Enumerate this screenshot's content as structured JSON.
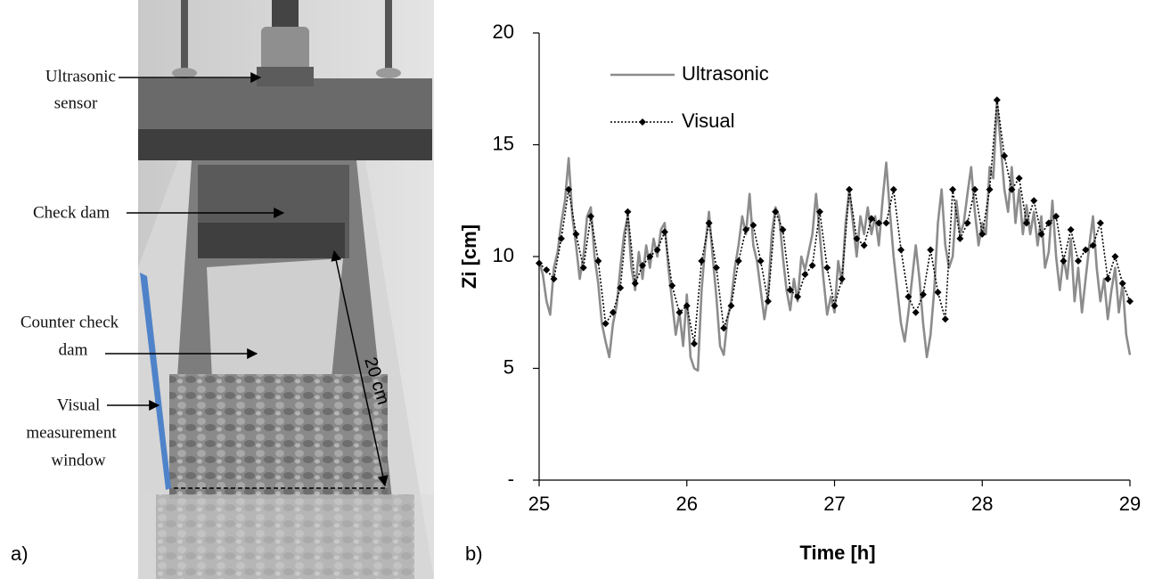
{
  "photo": {
    "labels": {
      "sensor": [
        "Ultrasonic",
        "sensor"
      ],
      "check_dam": [
        "Check dam"
      ],
      "counter_check_dam": [
        "Counter check",
        "dam"
      ],
      "window": [
        "Visual",
        "measurement",
        "window"
      ],
      "length": "20 cm"
    },
    "panel": "a)"
  },
  "chart_data": {
    "type": "line",
    "panel": "b)",
    "xlabel": "Time [h]",
    "ylabel": "Zi [cm]",
    "xlim": [
      25,
      29
    ],
    "ylim": [
      0,
      20
    ],
    "xticks": [
      25,
      26,
      27,
      28,
      29
    ],
    "yticks": [
      {
        "value": 0,
        "label": "-"
      },
      5,
      10,
      15,
      20
    ],
    "grid": false,
    "legend": "top-left",
    "series": [
      {
        "name": "Ultrasonic",
        "color": "#8c8c8c",
        "style": "solid",
        "x": [
          25,
          25.025,
          25.05,
          25.075,
          25.1,
          25.125,
          25.15,
          25.175,
          25.2,
          25.225,
          25.25,
          25.275,
          25.3,
          25.325,
          25.35,
          25.375,
          25.4,
          25.425,
          25.45,
          25.475,
          25.5,
          25.525,
          25.55,
          25.575,
          25.6,
          25.625,
          25.65,
          25.675,
          25.7,
          25.725,
          25.75,
          25.775,
          25.8,
          25.825,
          25.85,
          25.875,
          25.9,
          25.925,
          25.95,
          25.975,
          26,
          26.025,
          26.05,
          26.075,
          26.1,
          26.125,
          26.15,
          26.175,
          26.2,
          26.225,
          26.25,
          26.275,
          26.3,
          26.325,
          26.35,
          26.375,
          26.4,
          26.425,
          26.45,
          26.475,
          26.5,
          26.525,
          26.55,
          26.575,
          26.6,
          26.625,
          26.65,
          26.675,
          26.7,
          26.725,
          26.75,
          26.775,
          26.8,
          26.825,
          26.85,
          26.875,
          26.9,
          26.925,
          26.95,
          26.975,
          27,
          27.025,
          27.05,
          27.075,
          27.1,
          27.125,
          27.15,
          27.175,
          27.2,
          27.225,
          27.25,
          27.275,
          27.3,
          27.325,
          27.35,
          27.375,
          27.4,
          27.425,
          27.45,
          27.475,
          27.5,
          27.525,
          27.55,
          27.575,
          27.6,
          27.625,
          27.65,
          27.675,
          27.7,
          27.725,
          27.75,
          27.775,
          27.8,
          27.825,
          27.85,
          27.875,
          27.9,
          27.925,
          27.95,
          27.975,
          28,
          28.025,
          28.05,
          28.075,
          28.1,
          28.125,
          28.15,
          28.175,
          28.2,
          28.225,
          28.25,
          28.275,
          28.3,
          28.325,
          28.35,
          28.375,
          28.4,
          28.425,
          28.45,
          28.475,
          28.5,
          28.525,
          28.55,
          28.575,
          28.6,
          28.625,
          28.65,
          28.675,
          28.7,
          28.725,
          28.75,
          28.775,
          28.8,
          28.825,
          28.85,
          28.875,
          28.9,
          28.925,
          28.95,
          28.975,
          29
        ],
        "values": [
          9.8,
          9.2,
          8.0,
          7.4,
          9.5,
          10.2,
          11.5,
          12.5,
          14.4,
          11.8,
          10.5,
          9.0,
          10.0,
          11.8,
          12.2,
          10.0,
          8.8,
          7.0,
          6.2,
          5.5,
          7.0,
          7.8,
          9.5,
          11.0,
          11.8,
          9.5,
          8.5,
          10.2,
          9.0,
          10.5,
          9.5,
          10.8,
          10.0,
          11.2,
          11.5,
          9.5,
          8.0,
          6.5,
          7.5,
          6.0,
          8.3,
          5.5,
          5.0,
          4.9,
          8.5,
          10.5,
          12.0,
          10.0,
          8.2,
          6.0,
          5.6,
          7.2,
          8.0,
          9.5,
          10.5,
          11.8,
          11.0,
          12.8,
          10.5,
          9.8,
          8.5,
          7.2,
          8.3,
          11.0,
          12.2,
          11.8,
          10.0,
          8.5,
          7.6,
          9.0,
          8.0,
          10.0,
          9.4,
          10.2,
          11.0,
          12.8,
          11.0,
          9.0,
          7.4,
          8.2,
          7.5,
          9.8,
          8.8,
          11.5,
          13.0,
          11.5,
          10.0,
          11.8,
          11.0,
          12.2,
          11.0,
          11.8,
          10.5,
          12.5,
          14.2,
          12.0,
          10.0,
          8.5,
          7.0,
          6.2,
          7.5,
          9.0,
          10.5,
          9.0,
          7.0,
          5.5,
          6.5,
          8.5,
          11.5,
          13.0,
          10.5,
          9.5,
          10.0,
          12.5,
          11.0,
          11.5,
          12.8,
          14.0,
          12.0,
          10.5,
          11.5,
          11.0,
          14.0,
          13.5,
          16.9,
          15.0,
          13.0,
          12.0,
          14.0,
          11.5,
          13.0,
          11.0,
          12.3,
          11.0,
          12.0,
          10.5,
          11.8,
          9.5,
          10.2,
          12.5,
          10.0,
          8.5,
          10.0,
          9.0,
          10.8,
          8.0,
          9.5,
          7.5,
          9.0,
          10.5,
          11.8,
          9.5,
          8.0,
          9.0,
          7.2,
          8.5,
          9.5,
          7.5,
          8.8,
          6.5,
          5.6
        ]
      },
      {
        "name": "Visual",
        "color": "#000000",
        "style": "dotted",
        "marker": "diamond",
        "x": [
          25,
          25.05,
          25.1,
          25.15,
          25.2,
          25.25,
          25.3,
          25.35,
          25.4,
          25.45,
          25.5,
          25.55,
          25.6,
          25.65,
          25.7,
          25.75,
          25.8,
          25.85,
          25.9,
          25.95,
          26,
          26.05,
          26.1,
          26.15,
          26.2,
          26.25,
          26.3,
          26.35,
          26.4,
          26.45,
          26.5,
          26.55,
          26.6,
          26.65,
          26.7,
          26.75,
          26.8,
          26.85,
          26.9,
          26.95,
          27,
          27.05,
          27.1,
          27.15,
          27.2,
          27.25,
          27.3,
          27.35,
          27.4,
          27.45,
          27.5,
          27.55,
          27.6,
          27.65,
          27.7,
          27.75,
          27.8,
          27.85,
          27.9,
          27.95,
          28,
          28.05,
          28.1,
          28.15,
          28.2,
          28.25,
          28.3,
          28.35,
          28.4,
          28.45,
          28.5,
          28.55,
          28.6,
          28.65,
          28.7,
          28.75,
          28.8,
          28.85,
          28.9,
          28.95,
          29
        ],
        "values": [
          9.7,
          9.4,
          9.0,
          10.8,
          13.0,
          11.0,
          9.5,
          11.8,
          9.8,
          7.0,
          7.5,
          8.6,
          12.0,
          8.8,
          9.6,
          10.0,
          10.3,
          11.1,
          8.7,
          7.5,
          7.8,
          6.1,
          9.8,
          11.5,
          9.5,
          6.8,
          7.8,
          9.8,
          11.2,
          11.4,
          9.8,
          8.0,
          12.0,
          11.2,
          8.5,
          8.2,
          9.2,
          9.6,
          12.0,
          9.5,
          7.8,
          9.0,
          13.0,
          10.8,
          10.5,
          11.7,
          11.5,
          11.5,
          13.0,
          10.3,
          8.2,
          7.5,
          8.3,
          10.3,
          8.4,
          7.2,
          13.0,
          10.8,
          11.5,
          13.0,
          11.0,
          13.0,
          17.0,
          14.5,
          13.0,
          13.5,
          11.5,
          12.5,
          11.0,
          11.5,
          11.8,
          9.8,
          11.2,
          9.8,
          10.3,
          10.5,
          11.5,
          9.0,
          10.0,
          8.8,
          8.0
        ]
      }
    ]
  }
}
